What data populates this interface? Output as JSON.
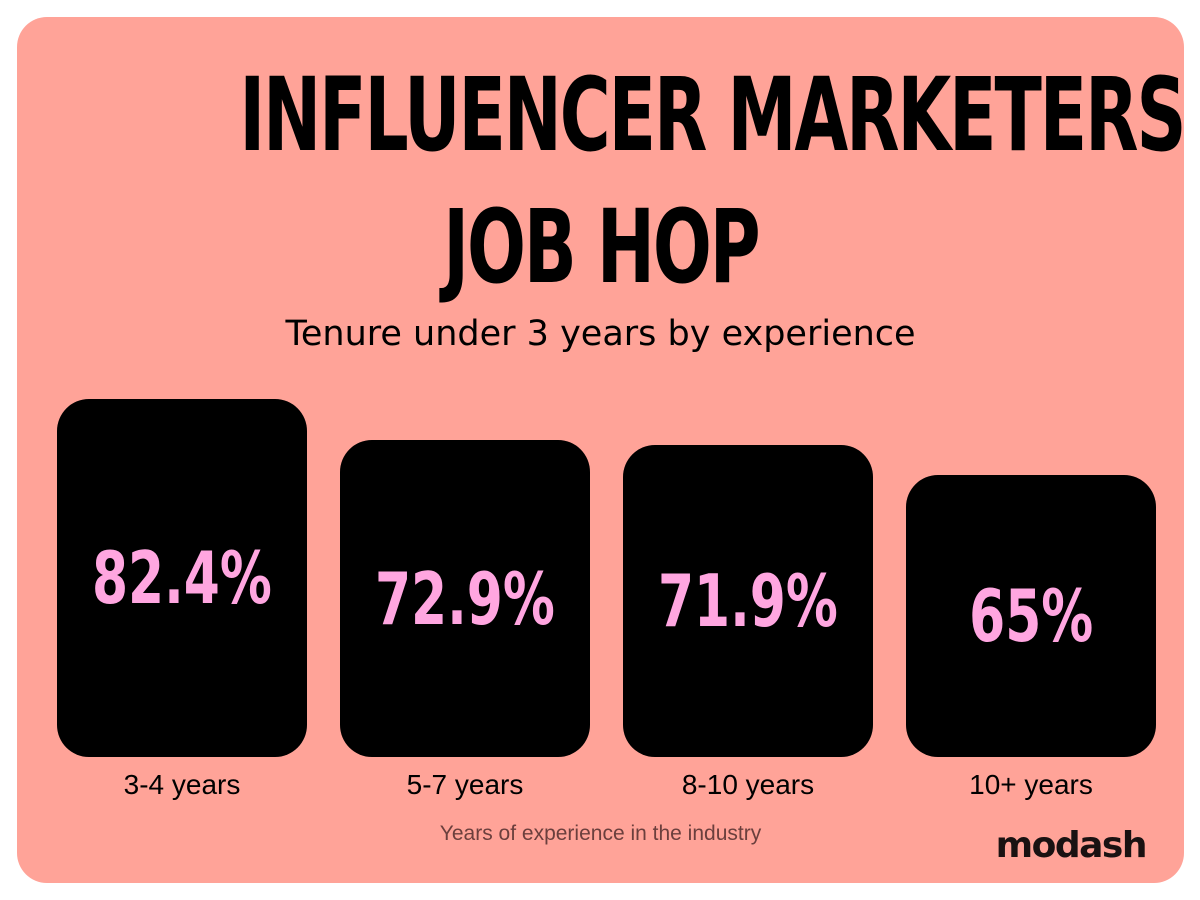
{
  "colors": {
    "background": "#ffa398",
    "bar": "#000000",
    "value_text": "#ffa6e0"
  },
  "title_lines": [
    "INFLUENCER MARKETERS",
    "JOB HOP"
  ],
  "subtitle": "Tenure under 3 years by experience",
  "brand": "modash",
  "chart_data": {
    "type": "bar",
    "title": "INFLUENCER MARKETERS JOB HOP",
    "subtitle": "Tenure under 3 years by experience",
    "xlabel": "Years of experience in the industry",
    "ylabel": "",
    "categories": [
      "3-4 years",
      "5-7 years",
      "8-10 years",
      "10+ years"
    ],
    "values": [
      82.4,
      72.9,
      71.9,
      65
    ],
    "value_labels": [
      "82.4%",
      "72.9%",
      "71.9%",
      "65%"
    ],
    "unit": "%",
    "ylim": [
      0,
      100
    ],
    "grid": false,
    "legend": "none"
  }
}
